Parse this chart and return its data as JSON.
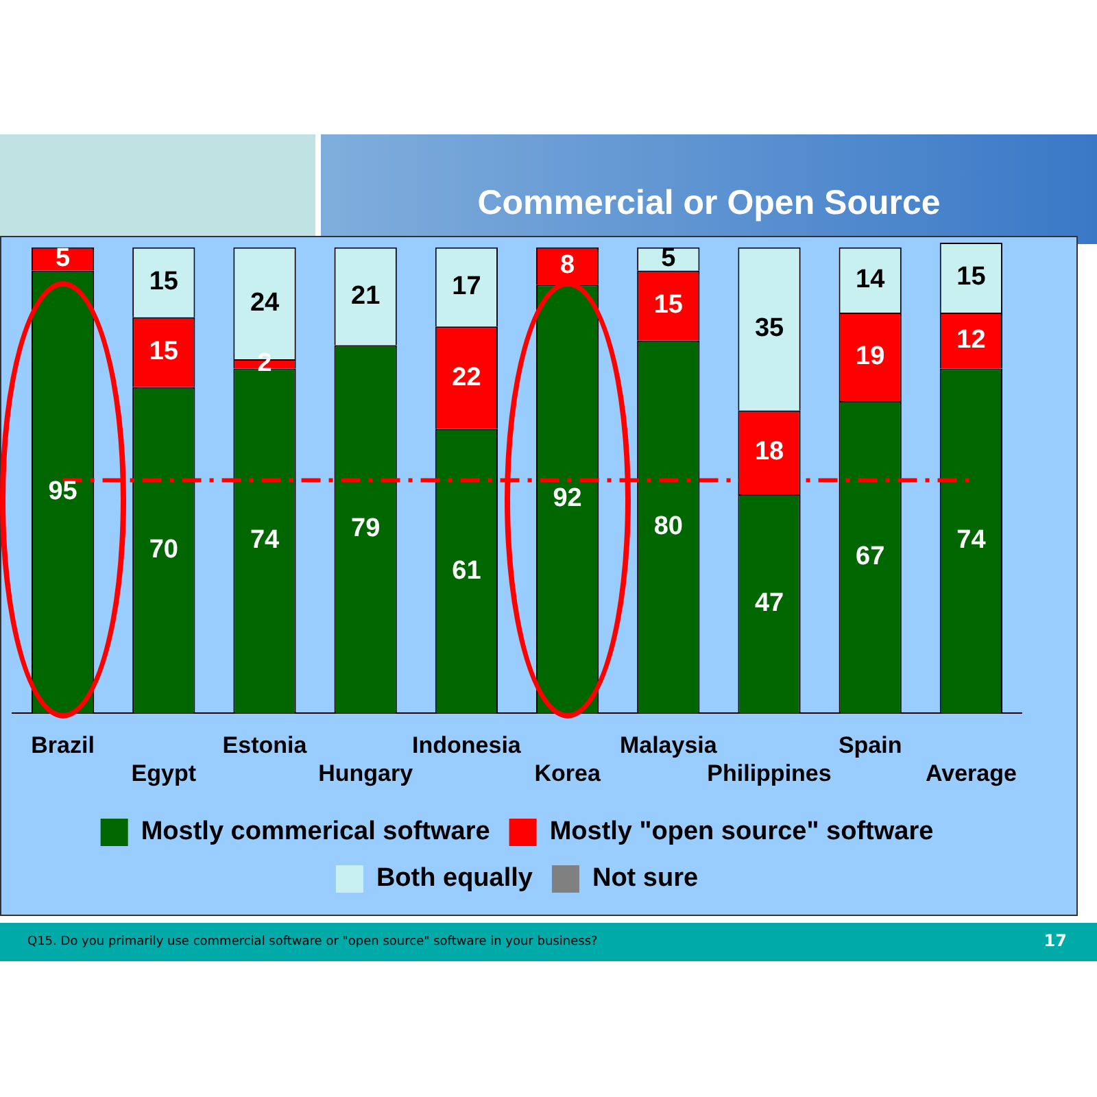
{
  "chart_data": {
    "type": "bar",
    "title": "Commercial or Open Source",
    "stacked": true,
    "categories": [
      "Brazil",
      "Egypt",
      "Estonia",
      "Hungary",
      "Indonesia",
      "Korea",
      "Malaysia",
      "Philippines",
      "Spain",
      "Average"
    ],
    "series": [
      {
        "name": "Mostly commerical software",
        "color": "#006600",
        "values": [
          95,
          70,
          74,
          79,
          61,
          92,
          80,
          47,
          67,
          74
        ]
      },
      {
        "name": "Mostly \"open source\" software",
        "color": "#ff0000",
        "values": [
          5,
          15,
          2,
          null,
          22,
          8,
          15,
          18,
          19,
          12
        ]
      },
      {
        "name": "Both equally",
        "color": "#c8f0f0",
        "values": [
          null,
          15,
          24,
          21,
          17,
          null,
          5,
          35,
          14,
          15
        ]
      },
      {
        "name": "Not sure",
        "color": "#808080",
        "values": [
          null,
          null,
          null,
          null,
          null,
          null,
          null,
          null,
          null,
          null
        ]
      }
    ],
    "data_labels": true,
    "legend": "bottom",
    "grid": false,
    "ref_lines": [
      {
        "axis": "y",
        "value": 50,
        "color": "#ff0000",
        "line_style": "dashdot"
      }
    ],
    "annotations": [
      "Q15. Do you primarily use commercial software or \"open source\" software in your business?",
      "17"
    ]
  }
}
